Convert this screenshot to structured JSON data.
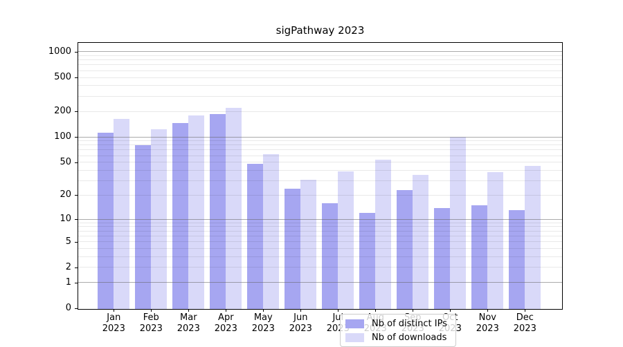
{
  "chart_data": {
    "type": "bar",
    "title": "sigPathway 2023",
    "scale": "log1p (y position proportional to log10(1+value), 0 at baseline)",
    "grid": "horizontal major gridlines at 1,10,100,1000; faint minor gridlines at 2-9 per decade; gridlines drawn over bars",
    "legend_position": "lower center inside plot",
    "categories": [
      "Jan 2023",
      "Feb 2023",
      "Mar 2023",
      "Apr 2023",
      "May 2023",
      "Jun 2023",
      "Jul 2023",
      "Aug 2023",
      "Sep 2023",
      "Oct 2023",
      "Nov 2023",
      "Dec 2023"
    ],
    "series": [
      {
        "name": "Nb of distinct IPs",
        "color": "#a6a6f1",
        "values": [
          112,
          80,
          145,
          185,
          48,
          24,
          16,
          12,
          23,
          14,
          15,
          13
        ]
      },
      {
        "name": "Nb of downloads",
        "color": "#d9d9f9",
        "values": [
          164,
          122,
          180,
          220,
          62,
          31,
          39,
          54,
          35,
          100,
          38,
          45
        ]
      }
    ],
    "xlabel": "",
    "ylabel": "",
    "y_tick_labels": [
      0,
      1,
      2,
      5,
      10,
      20,
      50,
      100,
      200,
      500,
      1000
    ],
    "ylim": [
      0,
      1270
    ]
  },
  "legend": {
    "items": [
      {
        "label": "Nb of distinct IPs",
        "color": "#a6a6f1"
      },
      {
        "label": "Nb of downloads",
        "color": "#d9d9f9"
      }
    ]
  },
  "colors": {
    "axis": "#000000",
    "major_grid": "#acacac",
    "minor_grid": "#ebebeb",
    "background": "#ffffff"
  }
}
